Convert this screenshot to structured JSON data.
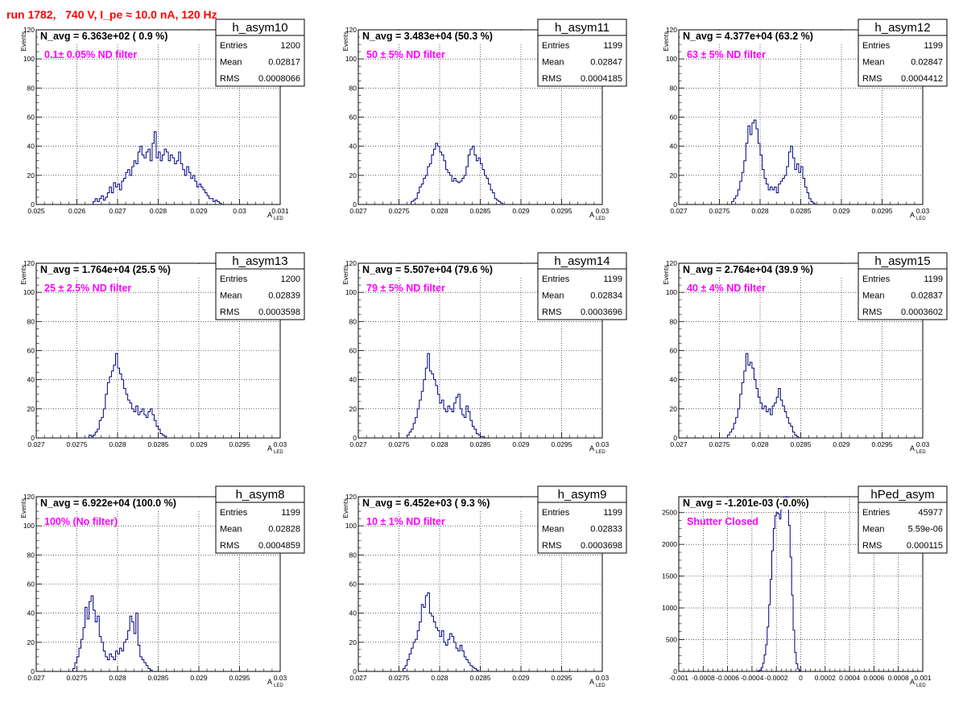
{
  "page_title": "run 1782,   740 V, I_pe ≈ 10.0 nA, 120 Hz",
  "stats_labels": {
    "entries": "Entries",
    "mean": "Mean",
    "rms": "RMS"
  },
  "colors": {
    "histogram_line": "#000080",
    "stats_text": "#000000",
    "filter_text": "#ff00ff",
    "title_text": "#ff0000",
    "grid": "#000000"
  },
  "chart_data": [
    {
      "type": "histogram",
      "name": "h_asym10",
      "navg_text": "N_avg = 6.363e+02 ( 0.9 %)",
      "filter_text": "0.1± 0.05% ND filter",
      "entries": "1200",
      "mean": "0.02817",
      "rms": "0.0008066",
      "xlabel": "A",
      "xlabel_sub": "LED",
      "ylabel": "Events",
      "xlim": [
        0.025,
        0.031
      ],
      "ylim": [
        0,
        120
      ],
      "xticks": [
        "0.025",
        "0.026",
        "0.027",
        "0.028",
        "0.029",
        "0.03",
        "0.031"
      ],
      "yticks": [
        "0",
        "20",
        "40",
        "60",
        "80",
        "100",
        "120"
      ],
      "bin_lo": 0.0264,
      "bin_w": 5e-05,
      "counts": [
        2,
        4,
        2,
        4,
        6,
        3,
        5,
        8,
        12,
        8,
        15,
        12,
        14,
        10,
        16,
        18,
        22,
        24,
        20,
        26,
        30,
        28,
        36,
        40,
        34,
        32,
        36,
        38,
        30,
        42,
        50,
        32,
        36,
        30,
        34,
        38,
        36,
        30,
        34,
        32,
        28,
        30,
        36,
        28,
        24,
        20,
        26,
        22,
        18,
        20,
        16,
        12,
        14,
        12,
        10,
        8,
        6,
        4,
        4,
        2,
        3,
        2,
        1
      ]
    },
    {
      "type": "histogram",
      "name": "h_asym11",
      "navg_text": "N_avg = 3.483e+04 (50.3 %)",
      "filter_text": "50 ± 5% ND filter",
      "entries": "1199",
      "mean": "0.02847",
      "rms": "0.0004185",
      "xlabel": "A",
      "xlabel_sub": "LED",
      "ylabel": "Events",
      "xlim": [
        0.027,
        0.03
      ],
      "ylim": [
        0,
        120
      ],
      "xticks": [
        "0.027",
        "0.0275",
        "0.028",
        "0.0285",
        "0.029",
        "0.0295",
        "0.03"
      ],
      "yticks": [
        "0",
        "20",
        "40",
        "60",
        "80",
        "100",
        "120"
      ],
      "bin_lo": 0.02765,
      "bin_w": 2.5e-05,
      "counts": [
        2,
        3,
        4,
        8,
        12,
        14,
        18,
        20,
        26,
        28,
        34,
        38,
        42,
        40,
        36,
        34,
        30,
        24,
        22,
        20,
        16,
        18,
        16,
        15,
        16,
        18,
        20,
        26,
        34,
        38,
        40,
        34,
        30,
        32,
        28,
        24,
        20,
        18,
        14,
        10,
        8,
        4,
        3,
        2,
        1
      ]
    },
    {
      "type": "histogram",
      "name": "h_asym12",
      "navg_text": "N_avg = 4.377e+04 (63.2 %)",
      "filter_text": "63 ± 5% ND filter",
      "entries": "1199",
      "mean": "0.02847",
      "rms": "0.0004412",
      "xlabel": "A",
      "xlabel_sub": "LED",
      "ylabel": "Events",
      "xlim": [
        0.027,
        0.03
      ],
      "ylim": [
        0,
        120
      ],
      "xticks": [
        "0.027",
        "0.0275",
        "0.028",
        "0.0285",
        "0.029",
        "0.0295",
        "0.03"
      ],
      "yticks": [
        "0",
        "20",
        "40",
        "60",
        "80",
        "100",
        "120"
      ],
      "bin_lo": 0.02765,
      "bin_w": 2.5e-05,
      "counts": [
        2,
        4,
        6,
        10,
        16,
        22,
        30,
        42,
        54,
        48,
        56,
        58,
        52,
        42,
        34,
        24,
        18,
        14,
        10,
        12,
        10,
        12,
        8,
        14,
        16,
        18,
        20,
        26,
        36,
        40,
        32,
        24,
        28,
        22,
        26,
        18,
        12,
        8,
        4,
        2,
        1
      ]
    },
    {
      "type": "histogram",
      "name": "h_asym13",
      "navg_text": "N_avg = 1.764e+04 (25.5 %)",
      "filter_text": "25 ± 2.5% ND filter",
      "entries": "1200",
      "mean": "0.02839",
      "rms": "0.0003598",
      "xlabel": "A",
      "xlabel_sub": "LED",
      "ylabel": "Events",
      "xlim": [
        0.027,
        0.03
      ],
      "ylim": [
        0,
        120
      ],
      "xticks": [
        "0.027",
        "0.0275",
        "0.028",
        "0.0285",
        "0.029",
        "0.0295",
        "0.03"
      ],
      "yticks": [
        "0",
        "20",
        "40",
        "60",
        "80",
        "100",
        "120"
      ],
      "bin_lo": 0.02765,
      "bin_w": 2.5e-05,
      "counts": [
        2,
        1,
        2,
        4,
        6,
        12,
        14,
        20,
        30,
        38,
        42,
        46,
        50,
        58,
        48,
        44,
        40,
        34,
        30,
        26,
        24,
        20,
        18,
        22,
        16,
        18,
        20,
        16,
        14,
        18,
        20,
        16,
        12,
        8,
        6,
        3,
        2,
        1
      ]
    },
    {
      "type": "histogram",
      "name": "h_asym14",
      "navg_text": "N_avg = 5.507e+04 (79.6 %)",
      "filter_text": "79 ± 5% ND filter",
      "entries": "1199",
      "mean": "0.02834",
      "rms": "0.0003696",
      "xlabel": "A",
      "xlabel_sub": "LED",
      "ylabel": "Events",
      "xlim": [
        0.027,
        0.03
      ],
      "ylim": [
        0,
        120
      ],
      "xticks": [
        "0.027",
        "0.0275",
        "0.028",
        "0.0285",
        "0.029",
        "0.0295",
        "0.03"
      ],
      "yticks": [
        "0",
        "20",
        "40",
        "60",
        "80",
        "100",
        "120"
      ],
      "bin_lo": 0.0276,
      "bin_w": 2.5e-05,
      "counts": [
        2,
        4,
        6,
        10,
        14,
        20,
        26,
        32,
        40,
        48,
        58,
        46,
        44,
        40,
        36,
        30,
        24,
        26,
        20,
        18,
        22,
        20,
        18,
        24,
        28,
        30,
        20,
        16,
        14,
        22,
        18,
        12,
        8,
        6,
        3,
        2,
        1,
        1
      ]
    },
    {
      "type": "histogram",
      "name": "h_asym15",
      "navg_text": "N_avg = 2.764e+04 (39.9 %)",
      "filter_text": "40 ± 4% ND filter",
      "entries": "1199",
      "mean": "0.02837",
      "rms": "0.0003602",
      "xlabel": "A",
      "xlabel_sub": "LED",
      "ylabel": "Events",
      "xlim": [
        0.027,
        0.03
      ],
      "ylim": [
        0,
        120
      ],
      "xticks": [
        "0.027",
        "0.0275",
        "0.028",
        "0.0285",
        "0.029",
        "0.0295",
        "0.03"
      ],
      "yticks": [
        "0",
        "20",
        "40",
        "60",
        "80",
        "100",
        "120"
      ],
      "bin_lo": 0.0276,
      "bin_w": 2.5e-05,
      "counts": [
        2,
        4,
        6,
        10,
        14,
        20,
        30,
        38,
        46,
        58,
        50,
        52,
        48,
        40,
        34,
        28,
        24,
        20,
        22,
        18,
        20,
        16,
        22,
        24,
        28,
        34,
        26,
        22,
        18,
        14,
        10,
        8,
        4,
        2,
        1
      ]
    },
    {
      "type": "histogram",
      "name": "h_asym8",
      "navg_text": "N_avg = 6.922e+04 (100.0 %)",
      "filter_text": "100% (No filter)",
      "entries": "1199",
      "mean": "0.02828",
      "rms": "0.0004859",
      "xlabel": "A",
      "xlabel_sub": "LED",
      "ylabel": "Events",
      "xlim": [
        0.027,
        0.03
      ],
      "ylim": [
        0,
        120
      ],
      "xticks": [
        "0.027",
        "0.0275",
        "0.028",
        "0.0285",
        "0.029",
        "0.0295",
        "0.03"
      ],
      "yticks": [
        "0",
        "20",
        "40",
        "60",
        "80",
        "100",
        "120"
      ],
      "bin_lo": 0.02745,
      "bin_w": 2.5e-05,
      "counts": [
        2,
        6,
        10,
        16,
        22,
        30,
        44,
        36,
        48,
        52,
        42,
        34,
        38,
        24,
        20,
        14,
        10,
        8,
        12,
        10,
        8,
        14,
        12,
        16,
        14,
        20,
        22,
        28,
        38,
        34,
        26,
        40,
        18,
        10,
        8,
        6,
        4,
        2,
        1
      ]
    },
    {
      "type": "histogram",
      "name": "h_asym9",
      "navg_text": "N_avg = 6.452e+03 ( 9.3 %)",
      "filter_text": "10 ± 1% ND filter",
      "entries": "1199",
      "mean": "0.02833",
      "rms": "0.0003698",
      "xlabel": "A",
      "xlabel_sub": "LED",
      "ylabel": "Events",
      "xlim": [
        0.027,
        0.03
      ],
      "ylim": [
        0,
        120
      ],
      "xticks": [
        "0.027",
        "0.0275",
        "0.028",
        "0.0285",
        "0.029",
        "0.0295",
        "0.03"
      ],
      "yticks": [
        "0",
        "20",
        "40",
        "60",
        "80",
        "100",
        "120"
      ],
      "bin_lo": 0.02755,
      "bin_w": 2.5e-05,
      "counts": [
        2,
        4,
        8,
        12,
        16,
        20,
        22,
        28,
        34,
        46,
        44,
        52,
        54,
        40,
        38,
        34,
        30,
        28,
        24,
        28,
        20,
        18,
        22,
        26,
        24,
        20,
        16,
        14,
        18,
        14,
        10,
        8,
        6,
        4,
        3,
        2,
        1
      ]
    },
    {
      "type": "histogram",
      "name": "hPed_asym",
      "navg_text": "N_avg = -1.201e-03 (-0.0%)",
      "filter_text": "Shutter Closed",
      "entries": "45977",
      "mean": "5.59e-06",
      "rms": "0.000115",
      "xlabel": "A",
      "xlabel_sub": "LED",
      "ylabel": "",
      "xlim": [
        -0.001,
        0.001
      ],
      "ylim": [
        0,
        2750
      ],
      "xticks": [
        "-0.001",
        "-0.0008",
        "-0.0006",
        "-0.0004",
        "-0.0002",
        "0",
        "0.0002",
        "0.0004",
        "0.0006",
        "0.0008",
        "0.001"
      ],
      "yticks": [
        "0",
        "500",
        "1000",
        "1500",
        "2000",
        "2500"
      ],
      "bin_lo": -0.00035,
      "bin_w": 1.25e-05,
      "counts": [
        8,
        20,
        60,
        130,
        260,
        420,
        700,
        1050,
        1450,
        1900,
        2250,
        2450,
        2500,
        2480,
        2400,
        2550,
        2620,
        2750,
        2650,
        2750,
        2300,
        1800,
        1200,
        650,
        300,
        120,
        40,
        12
      ]
    }
  ]
}
